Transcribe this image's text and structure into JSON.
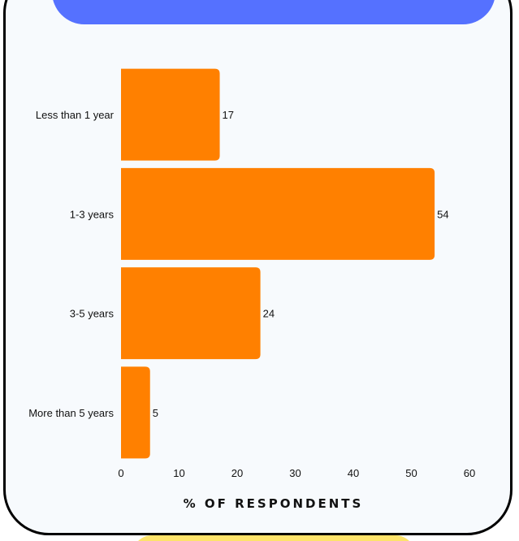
{
  "chart_data": {
    "type": "bar",
    "orientation": "horizontal",
    "categories": [
      "Less than 1 year",
      "1-3 years",
      "3-5 years",
      "More than 5 years"
    ],
    "values": [
      17,
      54,
      24,
      5
    ],
    "xlabel": "% OF RESPONDENTS",
    "ylabel": "",
    "xlim": [
      0,
      60
    ],
    "xticks": [
      0,
      10,
      20,
      30,
      40,
      50,
      60
    ],
    "grid": false,
    "legend": "none",
    "data_labels": true,
    "colors": {
      "bar": "#ff8000",
      "card_background": "#f7fafd",
      "top_banner": "#5571ff",
      "bottom_banner": "#fde36a",
      "text": "#111111"
    }
  }
}
